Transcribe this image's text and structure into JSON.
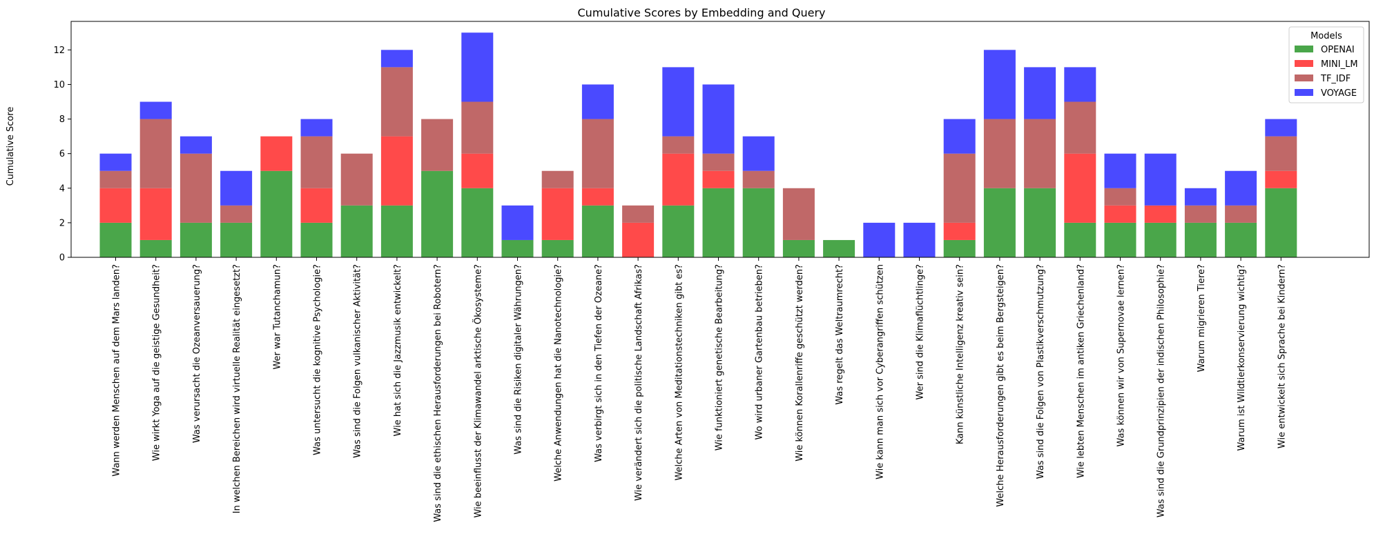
{
  "chart_data": {
    "type": "bar",
    "stacked": true,
    "title": "Cumulative Scores by Embedding and Query",
    "xlabel": "",
    "ylabel": "Cumulative Score",
    "ylim": [
      0,
      13.65
    ],
    "yticks": [
      0,
      2,
      4,
      6,
      8,
      10,
      12
    ],
    "grid": false,
    "legend": {
      "title": "Models",
      "placement": "top-right"
    },
    "categories": [
      "Wann werden Menschen auf dem Mars landen?",
      "Wie wirkt Yoga auf die geistige Gesundheit?",
      "Was verursacht die Ozeanversauerung?",
      "In welchen Bereichen wird virtuelle Realität eingesetzt?",
      "Wer war Tutanchamun?",
      "Was untersucht die kognitive Psychologie?",
      "Was sind die Folgen vulkanischer Aktivität?",
      "Wie hat sich die Jazzmusik entwickelt?",
      "Was sind die ethischen Herausforderungen bei Robotern?",
      "Wie beeinflusst der Klimawandel arktische Ökosysteme?",
      "Was sind die Risiken digitaler Währungen?",
      "Welche Anwendungen hat die Nanotechnologie?",
      "Was verbirgt sich in den Tiefen der Ozeane?",
      "Wie verändert sich die politische Landschaft Afrikas?",
      "Welche Arten von Meditationstechniken gibt es?",
      "Wie funktioniert genetische Bearbeitung?",
      "Wo wird urbaner Gartenbau betrieben?",
      "Wie können Korallenriffe geschützt werden?",
      "Was regelt das Weltraumrecht?",
      "Wie kann man sich vor Cyberangriffen schützen",
      "Wer sind die Klimaflüchtlinge?",
      "Kann künstliche Intelligenz kreativ sein?",
      "Welche Herausforderungen gibt es beim Bergsteigen?",
      "Was sind die Folgen von Plastikverschmutzung?",
      "Wie lebten Menschen im antiken Griechenland?",
      "Was können wir von Supernovae lernen?",
      "Was sind die Grundprinzipien der indischen Philosophie?",
      "Warum migrieren Tiere?",
      "Warum ist Wildtierkonservierung wichtig?",
      "Wie entwickelt sich Sprache bei Kindern?"
    ],
    "series": [
      {
        "name": "OPENAI",
        "color": "#4aa64a",
        "values": [
          2,
          1,
          2,
          2,
          5,
          2,
          3,
          3,
          5,
          4,
          1,
          1,
          3,
          0,
          3,
          4,
          4,
          1,
          1,
          0,
          0,
          1,
          4,
          4,
          2,
          2,
          2,
          2,
          2,
          4
        ]
      },
      {
        "name": "MINI_LM",
        "color": "#ff4a4a",
        "values": [
          2,
          3,
          0,
          0,
          2,
          2,
          0,
          4,
          0,
          2,
          0,
          3,
          1,
          2,
          3,
          1,
          0,
          0,
          0,
          0,
          0,
          1,
          0,
          0,
          4,
          1,
          1,
          0,
          0,
          1
        ]
      },
      {
        "name": "TF_IDF",
        "color": "#c06868",
        "values": [
          1,
          4,
          4,
          1,
          0,
          3,
          3,
          4,
          3,
          3,
          0,
          1,
          4,
          1,
          1,
          1,
          1,
          3,
          0,
          0,
          0,
          4,
          4,
          4,
          3,
          1,
          0,
          1,
          1,
          2
        ]
      },
      {
        "name": "VOYAGE",
        "color": "#4a4aff",
        "values": [
          1,
          1,
          1,
          2,
          0,
          1,
          0,
          1,
          0,
          4,
          2,
          0,
          2,
          0,
          4,
          4,
          2,
          0,
          0,
          2,
          2,
          2,
          4,
          3,
          2,
          2,
          3,
          1,
          2,
          1
        ]
      }
    ]
  }
}
